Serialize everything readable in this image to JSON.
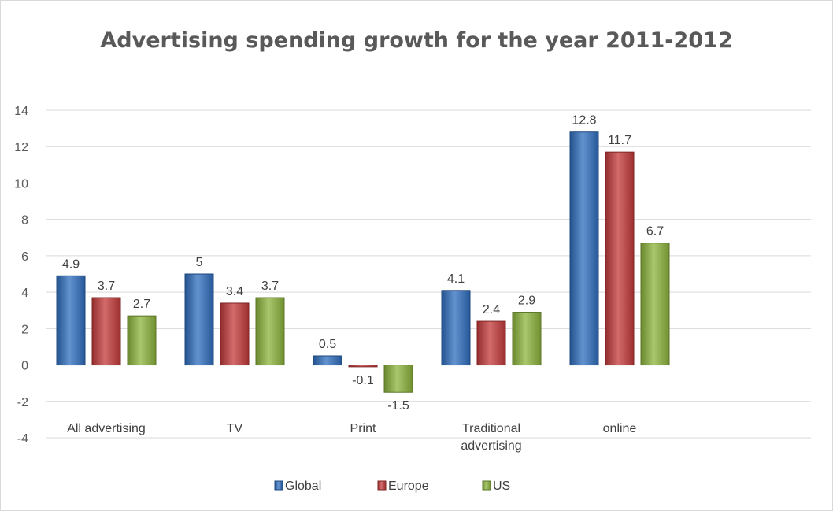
{
  "chart_data": {
    "type": "bar",
    "title": "Advertising spending growth for the year 2011-2012",
    "categories": [
      "All advertising",
      "TV",
      "Print",
      "Traditional advertising",
      "online"
    ],
    "series": [
      {
        "name": "Global",
        "color": "#2f6ebf",
        "values": [
          4.9,
          5,
          0.5,
          4.1,
          12.8
        ]
      },
      {
        "name": "Europe",
        "color": "#c43a3a",
        "values": [
          3.7,
          3.4,
          -0.1,
          2.4,
          11.7
        ]
      },
      {
        "name": "US",
        "color": "#8cb43c",
        "values": [
          2.7,
          3.7,
          -1.5,
          2.9,
          6.7
        ]
      }
    ],
    "ylim": [
      -4,
      14
    ],
    "yticks": [
      14,
      12,
      10,
      8,
      6,
      4,
      2,
      0,
      -2,
      -4
    ],
    "grid": true,
    "legend": "bottom"
  }
}
